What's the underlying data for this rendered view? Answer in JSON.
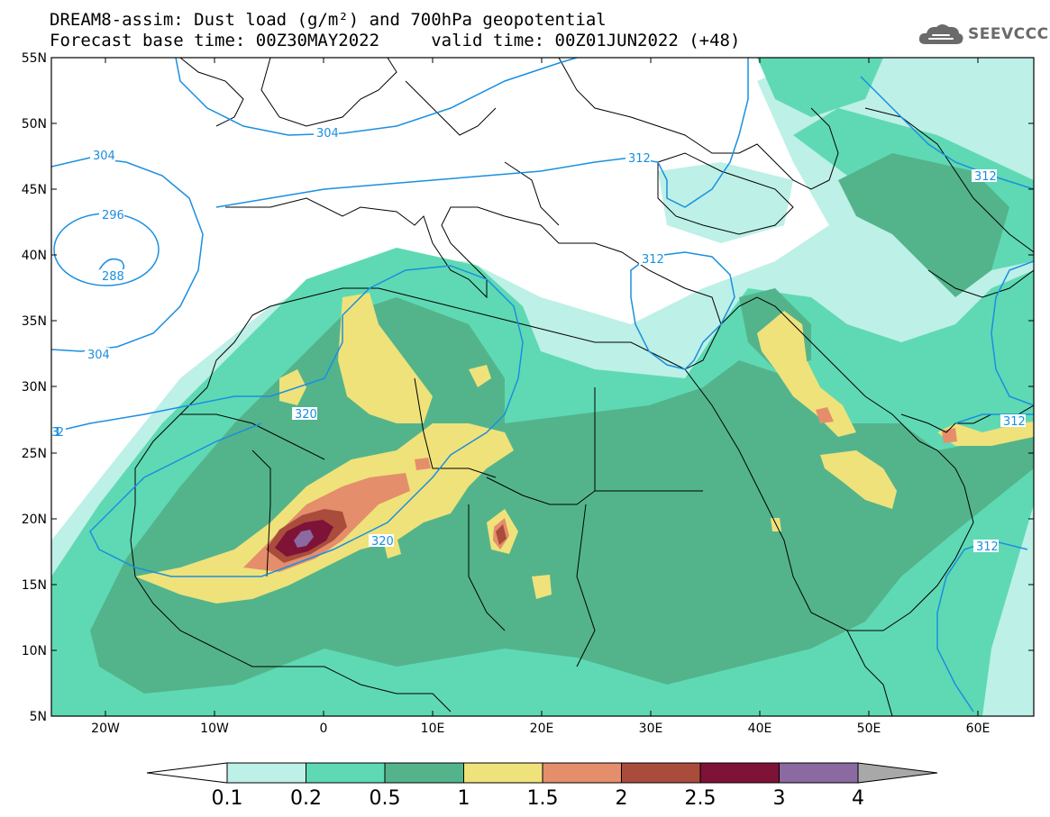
{
  "title": {
    "line1": "DREAM8-assim: Dust load (g/m²) and 700hPa geopotential",
    "line2": "Forecast base time: 00Z30MAY2022     valid time: 00Z01JUN2022 (+48)"
  },
  "logo": {
    "text": "SEEVCCC",
    "icon": "cloud-icon"
  },
  "map": {
    "lat_labels": [
      "55N",
      "50N",
      "45N",
      "40N",
      "35N",
      "30N",
      "25N",
      "20N",
      "15N",
      "10N",
      "5N"
    ],
    "lon_labels": [
      "20W",
      "10W",
      "0",
      "10E",
      "20E",
      "30E",
      "40E",
      "50E",
      "60E"
    ],
    "contour_labels": [
      "304",
      "304",
      "296",
      "288",
      "304",
      "312",
      "320",
      "320",
      "312",
      "312",
      "312",
      "312",
      "312"
    ]
  },
  "colorbar": {
    "tick_labels": [
      "0.1",
      "0.2",
      "0.5",
      "1",
      "1.5",
      "2",
      "2.5",
      "3",
      "4"
    ],
    "colors": [
      "#bdf0e6",
      "#5fd9b3",
      "#53b48c",
      "#efe27a",
      "#e48e6c",
      "#aa4c3c",
      "#7e1237",
      "#8a6aa0"
    ],
    "end_left_color": "#ffffff",
    "end_right_color": "#a8a8a8"
  },
  "colors": {
    "contour_line": "#1a8fe0",
    "coastline": "#000000"
  }
}
